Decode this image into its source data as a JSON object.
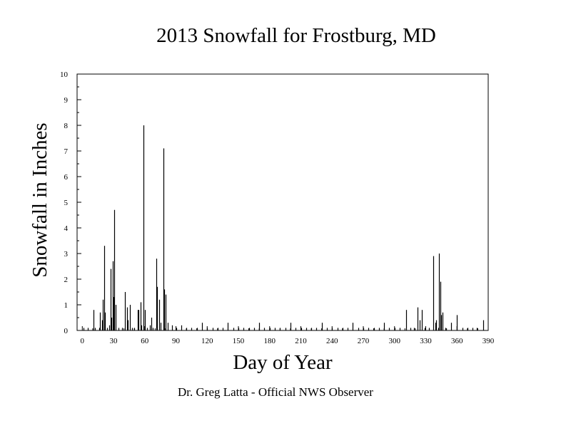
{
  "chart_data": {
    "type": "bar",
    "title": "2013 Snowfall for Frostburg, MD",
    "xlabel": "Day of Year",
    "ylabel": "Snowfall in Inches",
    "footer": "Dr. Greg Latta - Official NWS Observer",
    "xlim": [
      -5,
      390
    ],
    "ylim": [
      0,
      10
    ],
    "x_ticks": [
      0,
      30,
      60,
      90,
      120,
      150,
      180,
      210,
      240,
      270,
      300,
      330,
      360,
      390
    ],
    "y_ticks": [
      0,
      1,
      2,
      3,
      4,
      5,
      6,
      7,
      8,
      9,
      10
    ],
    "grid": false,
    "legend": "none",
    "bar_color": "#000000",
    "points": [
      {
        "day": 1,
        "value": 0.1
      },
      {
        "day": 5,
        "value": 0.1
      },
      {
        "day": 11,
        "value": 0.8
      },
      {
        "day": 12,
        "value": 0.1
      },
      {
        "day": 16,
        "value": 0.1
      },
      {
        "day": 17,
        "value": 0.7
      },
      {
        "day": 19,
        "value": 0.4
      },
      {
        "day": 20,
        "value": 1.2
      },
      {
        "day": 21,
        "value": 3.3
      },
      {
        "day": 22,
        "value": 0.7
      },
      {
        "day": 24,
        "value": 0.1
      },
      {
        "day": 26,
        "value": 0.2
      },
      {
        "day": 27,
        "value": 2.4
      },
      {
        "day": 28,
        "value": 0.5
      },
      {
        "day": 29,
        "value": 2.7
      },
      {
        "day": 30,
        "value": 1.3
      },
      {
        "day": 31,
        "value": 4.7
      },
      {
        "day": 32,
        "value": 1.0
      },
      {
        "day": 35,
        "value": 0.1
      },
      {
        "day": 38,
        "value": 0.1
      },
      {
        "day": 41,
        "value": 1.5
      },
      {
        "day": 43,
        "value": 0.9
      },
      {
        "day": 44,
        "value": 0.4
      },
      {
        "day": 46,
        "value": 1.0
      },
      {
        "day": 48,
        "value": 0.1
      },
      {
        "day": 50,
        "value": 0.1
      },
      {
        "day": 53,
        "value": 0.8
      },
      {
        "day": 54,
        "value": 0.8
      },
      {
        "day": 56,
        "value": 1.1
      },
      {
        "day": 57,
        "value": 0.2
      },
      {
        "day": 59,
        "value": 8.0
      },
      {
        "day": 60,
        "value": 0.8
      },
      {
        "day": 62,
        "value": 0.1
      },
      {
        "day": 65,
        "value": 0.2
      },
      {
        "day": 66,
        "value": 0.5
      },
      {
        "day": 68,
        "value": 0.1
      },
      {
        "day": 71,
        "value": 2.8
      },
      {
        "day": 72,
        "value": 1.7
      },
      {
        "day": 74,
        "value": 1.2
      },
      {
        "day": 75,
        "value": 0.3
      },
      {
        "day": 78,
        "value": 7.1
      },
      {
        "day": 79,
        "value": 1.6
      },
      {
        "day": 80,
        "value": 1.4
      },
      {
        "day": 82,
        "value": 0.3
      },
      {
        "day": 86,
        "value": 0.2
      },
      {
        "day": 90,
        "value": 0.1
      },
      {
        "day": 95,
        "value": 0.2
      },
      {
        "day": 100,
        "value": 0.1
      },
      {
        "day": 105,
        "value": 0.1
      },
      {
        "day": 110,
        "value": 0.1
      },
      {
        "day": 115,
        "value": 0.3
      },
      {
        "day": 120,
        "value": 0.1
      },
      {
        "day": 125,
        "value": 0.1
      },
      {
        "day": 130,
        "value": 0.1
      },
      {
        "day": 135,
        "value": 0.1
      },
      {
        "day": 140,
        "value": 0.3
      },
      {
        "day": 145,
        "value": 0.1
      },
      {
        "day": 150,
        "value": 0.1
      },
      {
        "day": 155,
        "value": 0.1
      },
      {
        "day": 160,
        "value": 0.1
      },
      {
        "day": 165,
        "value": 0.1
      },
      {
        "day": 170,
        "value": 0.3
      },
      {
        "day": 175,
        "value": 0.1
      },
      {
        "day": 180,
        "value": 0.1
      },
      {
        "day": 185,
        "value": 0.1
      },
      {
        "day": 190,
        "value": 0.1
      },
      {
        "day": 195,
        "value": 0.1
      },
      {
        "day": 200,
        "value": 0.3
      },
      {
        "day": 205,
        "value": 0.1
      },
      {
        "day": 210,
        "value": 0.1
      },
      {
        "day": 215,
        "value": 0.1
      },
      {
        "day": 220,
        "value": 0.1
      },
      {
        "day": 225,
        "value": 0.1
      },
      {
        "day": 230,
        "value": 0.3
      },
      {
        "day": 235,
        "value": 0.1
      },
      {
        "day": 240,
        "value": 0.1
      },
      {
        "day": 245,
        "value": 0.1
      },
      {
        "day": 250,
        "value": 0.1
      },
      {
        "day": 255,
        "value": 0.1
      },
      {
        "day": 260,
        "value": 0.3
      },
      {
        "day": 265,
        "value": 0.1
      },
      {
        "day": 270,
        "value": 0.1
      },
      {
        "day": 275,
        "value": 0.1
      },
      {
        "day": 280,
        "value": 0.1
      },
      {
        "day": 285,
        "value": 0.1
      },
      {
        "day": 290,
        "value": 0.3
      },
      {
        "day": 295,
        "value": 0.1
      },
      {
        "day": 300,
        "value": 0.1
      },
      {
        "day": 305,
        "value": 0.1
      },
      {
        "day": 311,
        "value": 0.8
      },
      {
        "day": 315,
        "value": 0.1
      },
      {
        "day": 319,
        "value": 0.1
      },
      {
        "day": 322,
        "value": 0.9
      },
      {
        "day": 324,
        "value": 0.4
      },
      {
        "day": 326,
        "value": 0.8
      },
      {
        "day": 329,
        "value": 0.1
      },
      {
        "day": 333,
        "value": 0.1
      },
      {
        "day": 337,
        "value": 2.9
      },
      {
        "day": 339,
        "value": 0.3
      },
      {
        "day": 340,
        "value": 0.4
      },
      {
        "day": 342,
        "value": 0.1
      },
      {
        "day": 343,
        "value": 3.0
      },
      {
        "day": 344,
        "value": 1.9
      },
      {
        "day": 345,
        "value": 0.6
      },
      {
        "day": 346,
        "value": 0.7
      },
      {
        "day": 349,
        "value": 0.1
      },
      {
        "day": 354,
        "value": 0.3
      },
      {
        "day": 360,
        "value": 0.6
      },
      {
        "day": 365,
        "value": 0.1
      },
      {
        "day": 370,
        "value": 0.1
      },
      {
        "day": 375,
        "value": 0.1
      },
      {
        "day": 379,
        "value": 0.1
      },
      {
        "day": 385,
        "value": 0.4
      }
    ]
  }
}
